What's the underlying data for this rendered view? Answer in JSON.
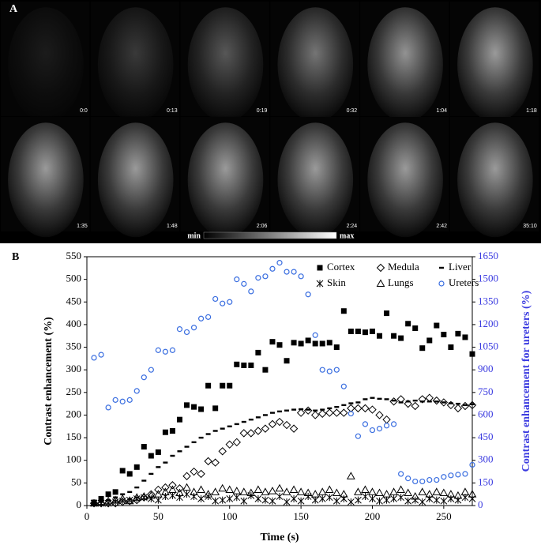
{
  "panel_a": {
    "label": "A",
    "timestamps": [
      "0:0",
      "0:13",
      "0:19",
      "0:32",
      "1:04",
      "1:18",
      "1:35",
      "1:48",
      "2:06",
      "2:24",
      "2:42",
      "35:10"
    ],
    "colorbar_min": "min",
    "colorbar_max": "max"
  },
  "chart_data": {
    "type": "scatter",
    "panel_label": "B",
    "x_label": "Time (s)",
    "y_label": "Contrast enhancement (%)",
    "y2_label": "Contrast enhancement for ureters (%)",
    "xlim": [
      0,
      270
    ],
    "xticks": [
      0,
      50,
      100,
      150,
      200,
      250
    ],
    "ylim": [
      0,
      550
    ],
    "yticks": [
      0,
      50,
      100,
      150,
      200,
      250,
      300,
      350,
      400,
      450,
      500,
      550
    ],
    "y2lim": [
      0,
      1650
    ],
    "y2ticks": [
      0,
      150,
      300,
      450,
      600,
      750,
      900,
      1050,
      1200,
      1350,
      1500,
      1650
    ],
    "y2_color": "#3a3ae0",
    "legend": "upper right",
    "x": [
      5,
      10,
      15,
      20,
      25,
      30,
      35,
      40,
      45,
      50,
      55,
      60,
      65,
      70,
      75,
      80,
      85,
      90,
      95,
      100,
      105,
      110,
      115,
      120,
      125,
      130,
      135,
      140,
      145,
      150,
      155,
      160,
      165,
      170,
      175,
      180,
      185,
      190,
      195,
      200,
      205,
      210,
      215,
      220,
      225,
      230,
      235,
      240,
      245,
      250,
      255,
      260,
      265,
      270
    ],
    "series": [
      {
        "name": "Cortex",
        "marker": "square",
        "color": "#000000",
        "values": [
          7,
          15,
          25,
          30,
          77,
          70,
          85,
          130,
          110,
          118,
          162,
          165,
          190,
          222,
          218,
          213,
          265,
          215,
          265,
          265,
          312,
          310,
          310,
          338,
          300,
          362,
          355,
          320,
          360,
          358,
          365,
          358,
          358,
          360,
          350,
          430,
          385,
          385,
          383,
          385,
          375,
          425,
          375,
          370,
          402,
          392,
          348,
          365,
          398,
          378,
          350,
          380,
          372,
          335
        ]
      },
      {
        "name": "Medula",
        "marker": "diamond",
        "color": "#000000",
        "values": [
          5,
          5,
          5,
          5,
          8,
          10,
          12,
          18,
          25,
          35,
          40,
          45,
          38,
          65,
          75,
          70,
          98,
          95,
          120,
          135,
          140,
          160,
          160,
          165,
          170,
          180,
          185,
          178,
          170,
          205,
          210,
          200,
          203,
          205,
          205,
          205,
          215,
          215,
          215,
          212,
          200,
          190,
          230,
          235,
          225,
          220,
          235,
          238,
          232,
          228,
          222,
          215,
          220,
          222
        ]
      },
      {
        "name": "Liver",
        "marker": "dash",
        "color": "#000000",
        "values": [
          5,
          8,
          12,
          18,
          25,
          30,
          40,
          55,
          70,
          85,
          95,
          110,
          120,
          130,
          140,
          150,
          158,
          165,
          170,
          175,
          180,
          185,
          190,
          195,
          200,
          205,
          208,
          210,
          212,
          213,
          212,
          210,
          212,
          215,
          218,
          222,
          226,
          228,
          235,
          238,
          236,
          235,
          232,
          228,
          230,
          232,
          230,
          230,
          230,
          228,
          226,
          225,
          222,
          224
        ]
      },
      {
        "name": "Skin",
        "marker": "asterisk",
        "color": "#000000",
        "values": [
          5,
          5,
          5,
          8,
          10,
          12,
          15,
          18,
          15,
          12,
          20,
          22,
          18,
          25,
          20,
          15,
          20,
          10,
          12,
          15,
          18,
          10,
          22,
          15,
          12,
          10,
          20,
          8,
          15,
          10,
          20,
          12,
          15,
          18,
          10,
          15,
          8,
          12,
          20,
          15,
          10,
          12,
          15,
          18,
          10,
          12,
          8,
          15,
          12,
          10,
          15,
          12,
          18,
          15
        ]
      },
      {
        "name": "Lungs",
        "marker": "triangle",
        "color": "#000000",
        "values": [
          5,
          8,
          10,
          12,
          15,
          10,
          18,
          20,
          22,
          25,
          30,
          35,
          28,
          40,
          30,
          35,
          25,
          30,
          38,
          35,
          32,
          30,
          28,
          35,
          30,
          32,
          38,
          30,
          35,
          30,
          28,
          25,
          30,
          35,
          28,
          25,
          65,
          30,
          35,
          30,
          28,
          25,
          30,
          35,
          28,
          20,
          30,
          25,
          30,
          28,
          25,
          22,
          30,
          25
        ]
      },
      {
        "name": "Ureters",
        "marker": "circle",
        "color": "#3a6ee0",
        "axis": "y2",
        "values": [
          980,
          1000,
          650,
          700,
          690,
          700,
          760,
          850,
          900,
          1030,
          1020,
          1030,
          1170,
          1150,
          1180,
          1240,
          1250,
          1370,
          1340,
          1350,
          1500,
          1470,
          1420,
          1510,
          1520,
          1570,
          1610,
          1550,
          1550,
          1520,
          1400,
          1130,
          900,
          890,
          900,
          790,
          610,
          460,
          540,
          500,
          510,
          530,
          540,
          210,
          180,
          160,
          160,
          170,
          170,
          190,
          200,
          205,
          210,
          270
        ]
      }
    ]
  }
}
